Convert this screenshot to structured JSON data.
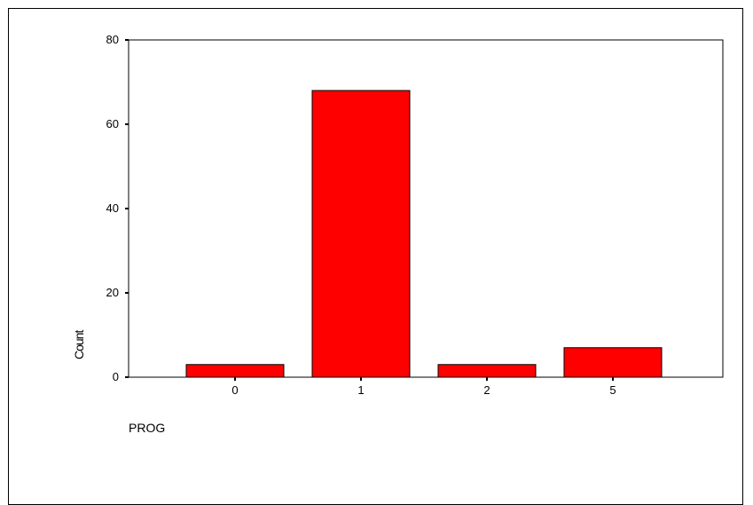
{
  "chart_data": {
    "type": "bar",
    "categories": [
      "0",
      "1",
      "2",
      "5"
    ],
    "values": [
      3,
      68,
      3,
      7
    ],
    "xlabel": "PROG",
    "ylabel": "Count",
    "ylim": [
      0,
      80
    ],
    "yticks": [
      "0",
      "20",
      "40",
      "60",
      "80"
    ],
    "grid": false,
    "bar_color": "#ff0000",
    "bar_edge_color": "#000000"
  }
}
